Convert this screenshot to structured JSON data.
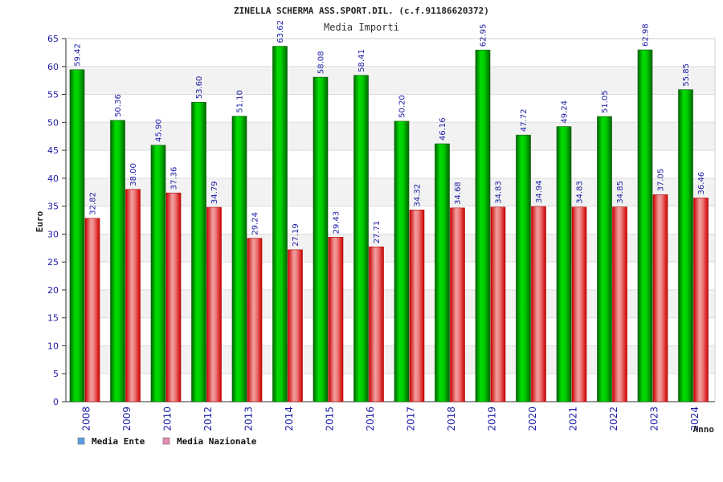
{
  "chart_data": {
    "type": "bar",
    "title": "ZINELLA SCHERMA ASS.SPORT.DIL. (c.f.91186620372)",
    "subtitle": "Media Importi",
    "xlabel": "Anno",
    "ylabel": "Euro",
    "ylim": [
      0,
      65
    ],
    "yticks": [
      0,
      5,
      10,
      15,
      20,
      25,
      30,
      35,
      40,
      45,
      50,
      55,
      60,
      65
    ],
    "grid": true,
    "legend_position": "bottom-left",
    "categories": [
      "2008",
      "2009",
      "2010",
      "2012",
      "2013",
      "2014",
      "2015",
      "2016",
      "2017",
      "2018",
      "2019",
      "2020",
      "2021",
      "2022",
      "2023",
      "2024"
    ],
    "series": [
      {
        "name": "Media Ente",
        "color": "#00b400",
        "legend_color": "#5aa0e6",
        "values": [
          59.42,
          50.36,
          45.9,
          53.6,
          51.1,
          63.62,
          58.08,
          58.41,
          50.2,
          46.16,
          62.95,
          47.72,
          49.24,
          51.05,
          62.98,
          55.85
        ],
        "labels": [
          "59.42",
          "50.36",
          "45.90",
          "53.60",
          "51.10",
          "63.62",
          "58.08",
          "58.41",
          "50.20",
          "46.16",
          "62.95",
          "47.72",
          "49.24",
          "51.05",
          "62.98",
          "55.85"
        ]
      },
      {
        "name": "Media Nazionale",
        "color": "#e02020",
        "legend_color": "#e68cb4",
        "values": [
          32.82,
          38.0,
          37.36,
          34.79,
          29.24,
          27.19,
          29.43,
          27.71,
          34.32,
          34.68,
          34.83,
          34.94,
          34.83,
          34.85,
          37.05,
          36.46
        ],
        "labels": [
          "32.82",
          "38.00",
          "37.36",
          "34.79",
          "29.24",
          "27.19",
          "29.43",
          "27.71",
          "34.32",
          "34.68",
          "34.83",
          "34.94",
          "34.83",
          "34.85",
          "37.05",
          "36.46"
        ]
      }
    ]
  }
}
